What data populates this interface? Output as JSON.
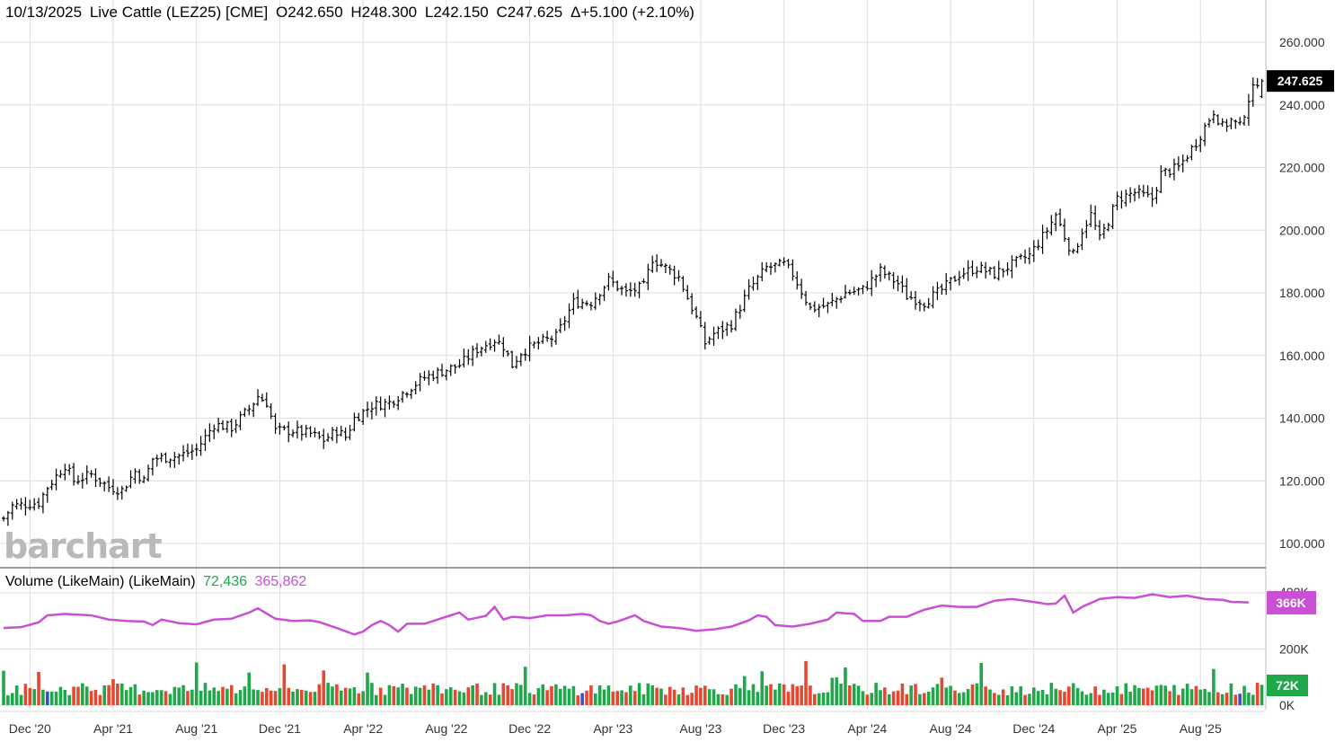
{
  "header": {
    "date": "10/13/2025",
    "name": "Live Cattle (LEZ25) [CME]",
    "open": "O242.650",
    "high": "H248.300",
    "low": "L242.150",
    "close": "C247.625",
    "change": "Δ+5.100 (+2.10%)"
  },
  "volume_header": {
    "title": "Volume (LikeMain)  (LikeMain)",
    "volume_value": "72,436",
    "avg_value": "365,862"
  },
  "watermark": "barchart",
  "colors": {
    "up_volume": "#1ea84a",
    "down_volume": "#e8472f",
    "neutral_volume": "#3b4fc4",
    "average_line": "#c94fd4",
    "price_bars": "#000000",
    "grid": "#dddddd",
    "last_price_badge": "#000000",
    "avg_badge": "#c94fd4",
    "vol_badge": "#1ea84a"
  },
  "chart_data": [
    {
      "type": "ohlc",
      "title": "Live Cattle (LEZ25) [CME]",
      "interval": "weekly",
      "ylim": [
        95,
        264
      ],
      "yticks": [
        "100.000",
        "120.000",
        "140.000",
        "160.000",
        "180.000",
        "200.000",
        "220.000",
        "240.000",
        "260.000"
      ],
      "xticks": [
        "Dec '20",
        "Apr '21",
        "Aug '21",
        "Dec '21",
        "Apr '22",
        "Aug '22",
        "Dec '22",
        "Apr '23",
        "Aug '23",
        "Dec '23",
        "Apr '24",
        "Aug '24",
        "Dec '24",
        "Apr '25",
        "Aug '25"
      ],
      "last_price_label": "247.625",
      "close_anchors": [
        [
          0,
          108
        ],
        [
          2,
          112
        ],
        [
          8,
          113
        ],
        [
          10,
          118
        ],
        [
          14,
          125
        ],
        [
          16,
          120
        ],
        [
          20,
          122
        ],
        [
          22,
          120
        ],
        [
          24,
          118
        ],
        [
          27,
          117
        ],
        [
          30,
          123
        ],
        [
          32,
          120
        ],
        [
          34,
          127
        ],
        [
          40,
          128
        ],
        [
          44,
          130
        ],
        [
          48,
          138
        ],
        [
          52,
          137
        ],
        [
          56,
          143
        ],
        [
          58,
          147
        ],
        [
          60,
          145
        ],
        [
          62,
          136
        ],
        [
          66,
          136
        ],
        [
          70,
          135
        ],
        [
          73,
          133
        ],
        [
          76,
          136
        ],
        [
          78,
          134
        ],
        [
          80,
          140
        ],
        [
          84,
          144
        ],
        [
          88,
          145
        ],
        [
          92,
          149
        ],
        [
          96,
          153
        ],
        [
          100,
          155
        ],
        [
          104,
          157
        ],
        [
          108,
          162
        ],
        [
          112,
          165
        ],
        [
          114,
          163
        ],
        [
          116,
          157
        ],
        [
          118,
          161
        ],
        [
          122,
          164
        ],
        [
          126,
          166
        ],
        [
          130,
          177
        ],
        [
          134,
          177
        ],
        [
          138,
          184
        ],
        [
          142,
          180
        ],
        [
          146,
          182
        ],
        [
          148,
          191
        ],
        [
          152,
          187
        ],
        [
          154,
          185
        ],
        [
          158,
          172
        ],
        [
          160,
          164
        ],
        [
          162,
          167
        ],
        [
          166,
          170
        ],
        [
          170,
          181
        ],
        [
          174,
          188
        ],
        [
          178,
          189
        ],
        [
          180,
          186
        ],
        [
          184,
          175
        ],
        [
          188,
          176
        ],
        [
          192,
          180
        ],
        [
          196,
          181
        ],
        [
          200,
          187
        ],
        [
          204,
          183
        ],
        [
          206,
          179
        ],
        [
          210,
          177
        ],
        [
          214,
          181
        ],
        [
          218,
          186
        ],
        [
          222,
          188
        ],
        [
          226,
          186
        ],
        [
          230,
          189
        ],
        [
          234,
          192
        ],
        [
          238,
          200
        ],
        [
          240,
          205
        ],
        [
          242,
          198
        ],
        [
          244,
          192
        ],
        [
          246,
          200
        ],
        [
          248,
          205
        ],
        [
          250,
          197
        ],
        [
          252,
          203
        ],
        [
          254,
          210
        ],
        [
          258,
          212
        ],
        [
          262,
          210
        ],
        [
          264,
          218
        ],
        [
          268,
          220
        ],
        [
          272,
          228
        ],
        [
          276,
          238
        ],
        [
          278,
          233
        ],
        [
          280,
          235
        ],
        [
          282,
          233
        ],
        [
          284,
          242
        ],
        [
          286,
          247.625
        ]
      ]
    },
    {
      "type": "bar+line",
      "title": "Volume (LikeMain)",
      "ylim": [
        0,
        400000
      ],
      "yticks": [
        "0K",
        "200K",
        "400K"
      ],
      "last_volume_label": "72K",
      "last_average_label": "366K",
      "last_volume": 72436,
      "last_average": 365862,
      "average_anchors": [
        [
          0,
          275000
        ],
        [
          4,
          278000
        ],
        [
          8,
          295000
        ],
        [
          10,
          320000
        ],
        [
          14,
          325000
        ],
        [
          20,
          320000
        ],
        [
          24,
          305000
        ],
        [
          28,
          300000
        ],
        [
          32,
          298000
        ],
        [
          34,
          285000
        ],
        [
          36,
          305000
        ],
        [
          40,
          292000
        ],
        [
          44,
          288000
        ],
        [
          48,
          305000
        ],
        [
          52,
          308000
        ],
        [
          56,
          330000
        ],
        [
          58,
          345000
        ],
        [
          62,
          308000
        ],
        [
          66,
          300000
        ],
        [
          70,
          302000
        ],
        [
          72,
          296000
        ],
        [
          76,
          275000
        ],
        [
          80,
          252000
        ],
        [
          82,
          262000
        ],
        [
          84,
          285000
        ],
        [
          86,
          300000
        ],
        [
          88,
          285000
        ],
        [
          90,
          262000
        ],
        [
          92,
          290000
        ],
        [
          96,
          290000
        ],
        [
          100,
          310000
        ],
        [
          104,
          330000
        ],
        [
          106,
          305000
        ],
        [
          110,
          318000
        ],
        [
          112,
          350000
        ],
        [
          114,
          305000
        ],
        [
          116,
          315000
        ],
        [
          120,
          310000
        ],
        [
          124,
          320000
        ],
        [
          128,
          320000
        ],
        [
          132,
          325000
        ],
        [
          134,
          320000
        ],
        [
          136,
          300000
        ],
        [
          138,
          290000
        ],
        [
          140,
          298000
        ],
        [
          144,
          320000
        ],
        [
          146,
          300000
        ],
        [
          150,
          280000
        ],
        [
          154,
          275000
        ],
        [
          158,
          265000
        ],
        [
          162,
          270000
        ],
        [
          166,
          280000
        ],
        [
          170,
          302000
        ],
        [
          172,
          320000
        ],
        [
          174,
          315000
        ],
        [
          176,
          285000
        ],
        [
          180,
          280000
        ],
        [
          184,
          290000
        ],
        [
          188,
          305000
        ],
        [
          190,
          330000
        ],
        [
          194,
          325000
        ],
        [
          196,
          300000
        ],
        [
          200,
          300000
        ],
        [
          202,
          315000
        ],
        [
          206,
          315000
        ],
        [
          210,
          340000
        ],
        [
          214,
          355000
        ],
        [
          218,
          350000
        ],
        [
          222,
          350000
        ],
        [
          226,
          372000
        ],
        [
          230,
          378000
        ],
        [
          234,
          370000
        ],
        [
          238,
          360000
        ],
        [
          240,
          362000
        ],
        [
          242,
          390000
        ],
        [
          244,
          330000
        ],
        [
          246,
          350000
        ],
        [
          250,
          378000
        ],
        [
          254,
          385000
        ],
        [
          258,
          382000
        ],
        [
          262,
          395000
        ],
        [
          266,
          385000
        ],
        [
          270,
          390000
        ],
        [
          274,
          378000
        ],
        [
          278,
          375000
        ],
        [
          280,
          368000
        ],
        [
          284,
          366000
        ]
      ]
    }
  ]
}
